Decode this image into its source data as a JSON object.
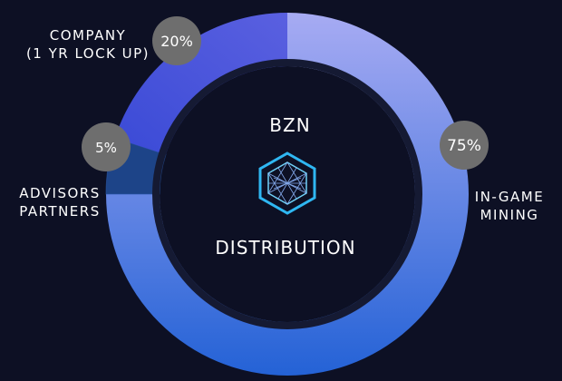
{
  "chart_data": {
    "type": "pie",
    "title": "BZN",
    "subtitle": "DISTRIBUTION",
    "slices": [
      {
        "label_lines": [
          "IN-GAME",
          "MINING"
        ],
        "value": 75,
        "value_label": "75%",
        "color_start": "#a7abf3",
        "color_end": "#2462d6"
      },
      {
        "label_lines": [
          "ADVISORS",
          "PARTNERS"
        ],
        "value": 5,
        "value_label": "5%",
        "color_start": "#1d4488",
        "color_end": "#1d4488"
      },
      {
        "label_lines": [
          "COMPANY",
          "(1 YR LOCK UP)"
        ],
        "value": 20,
        "value_label": "20%",
        "color_start": "#3a4ad6",
        "color_end": "#5a60e0"
      }
    ]
  },
  "colors": {
    "background": "#0d1024",
    "badge": "#6e6e6e",
    "inner_ring": "#151a33",
    "logo": "#2fb7f2"
  },
  "icons": {
    "logo": "bzn-hexagon-logo-icon"
  }
}
